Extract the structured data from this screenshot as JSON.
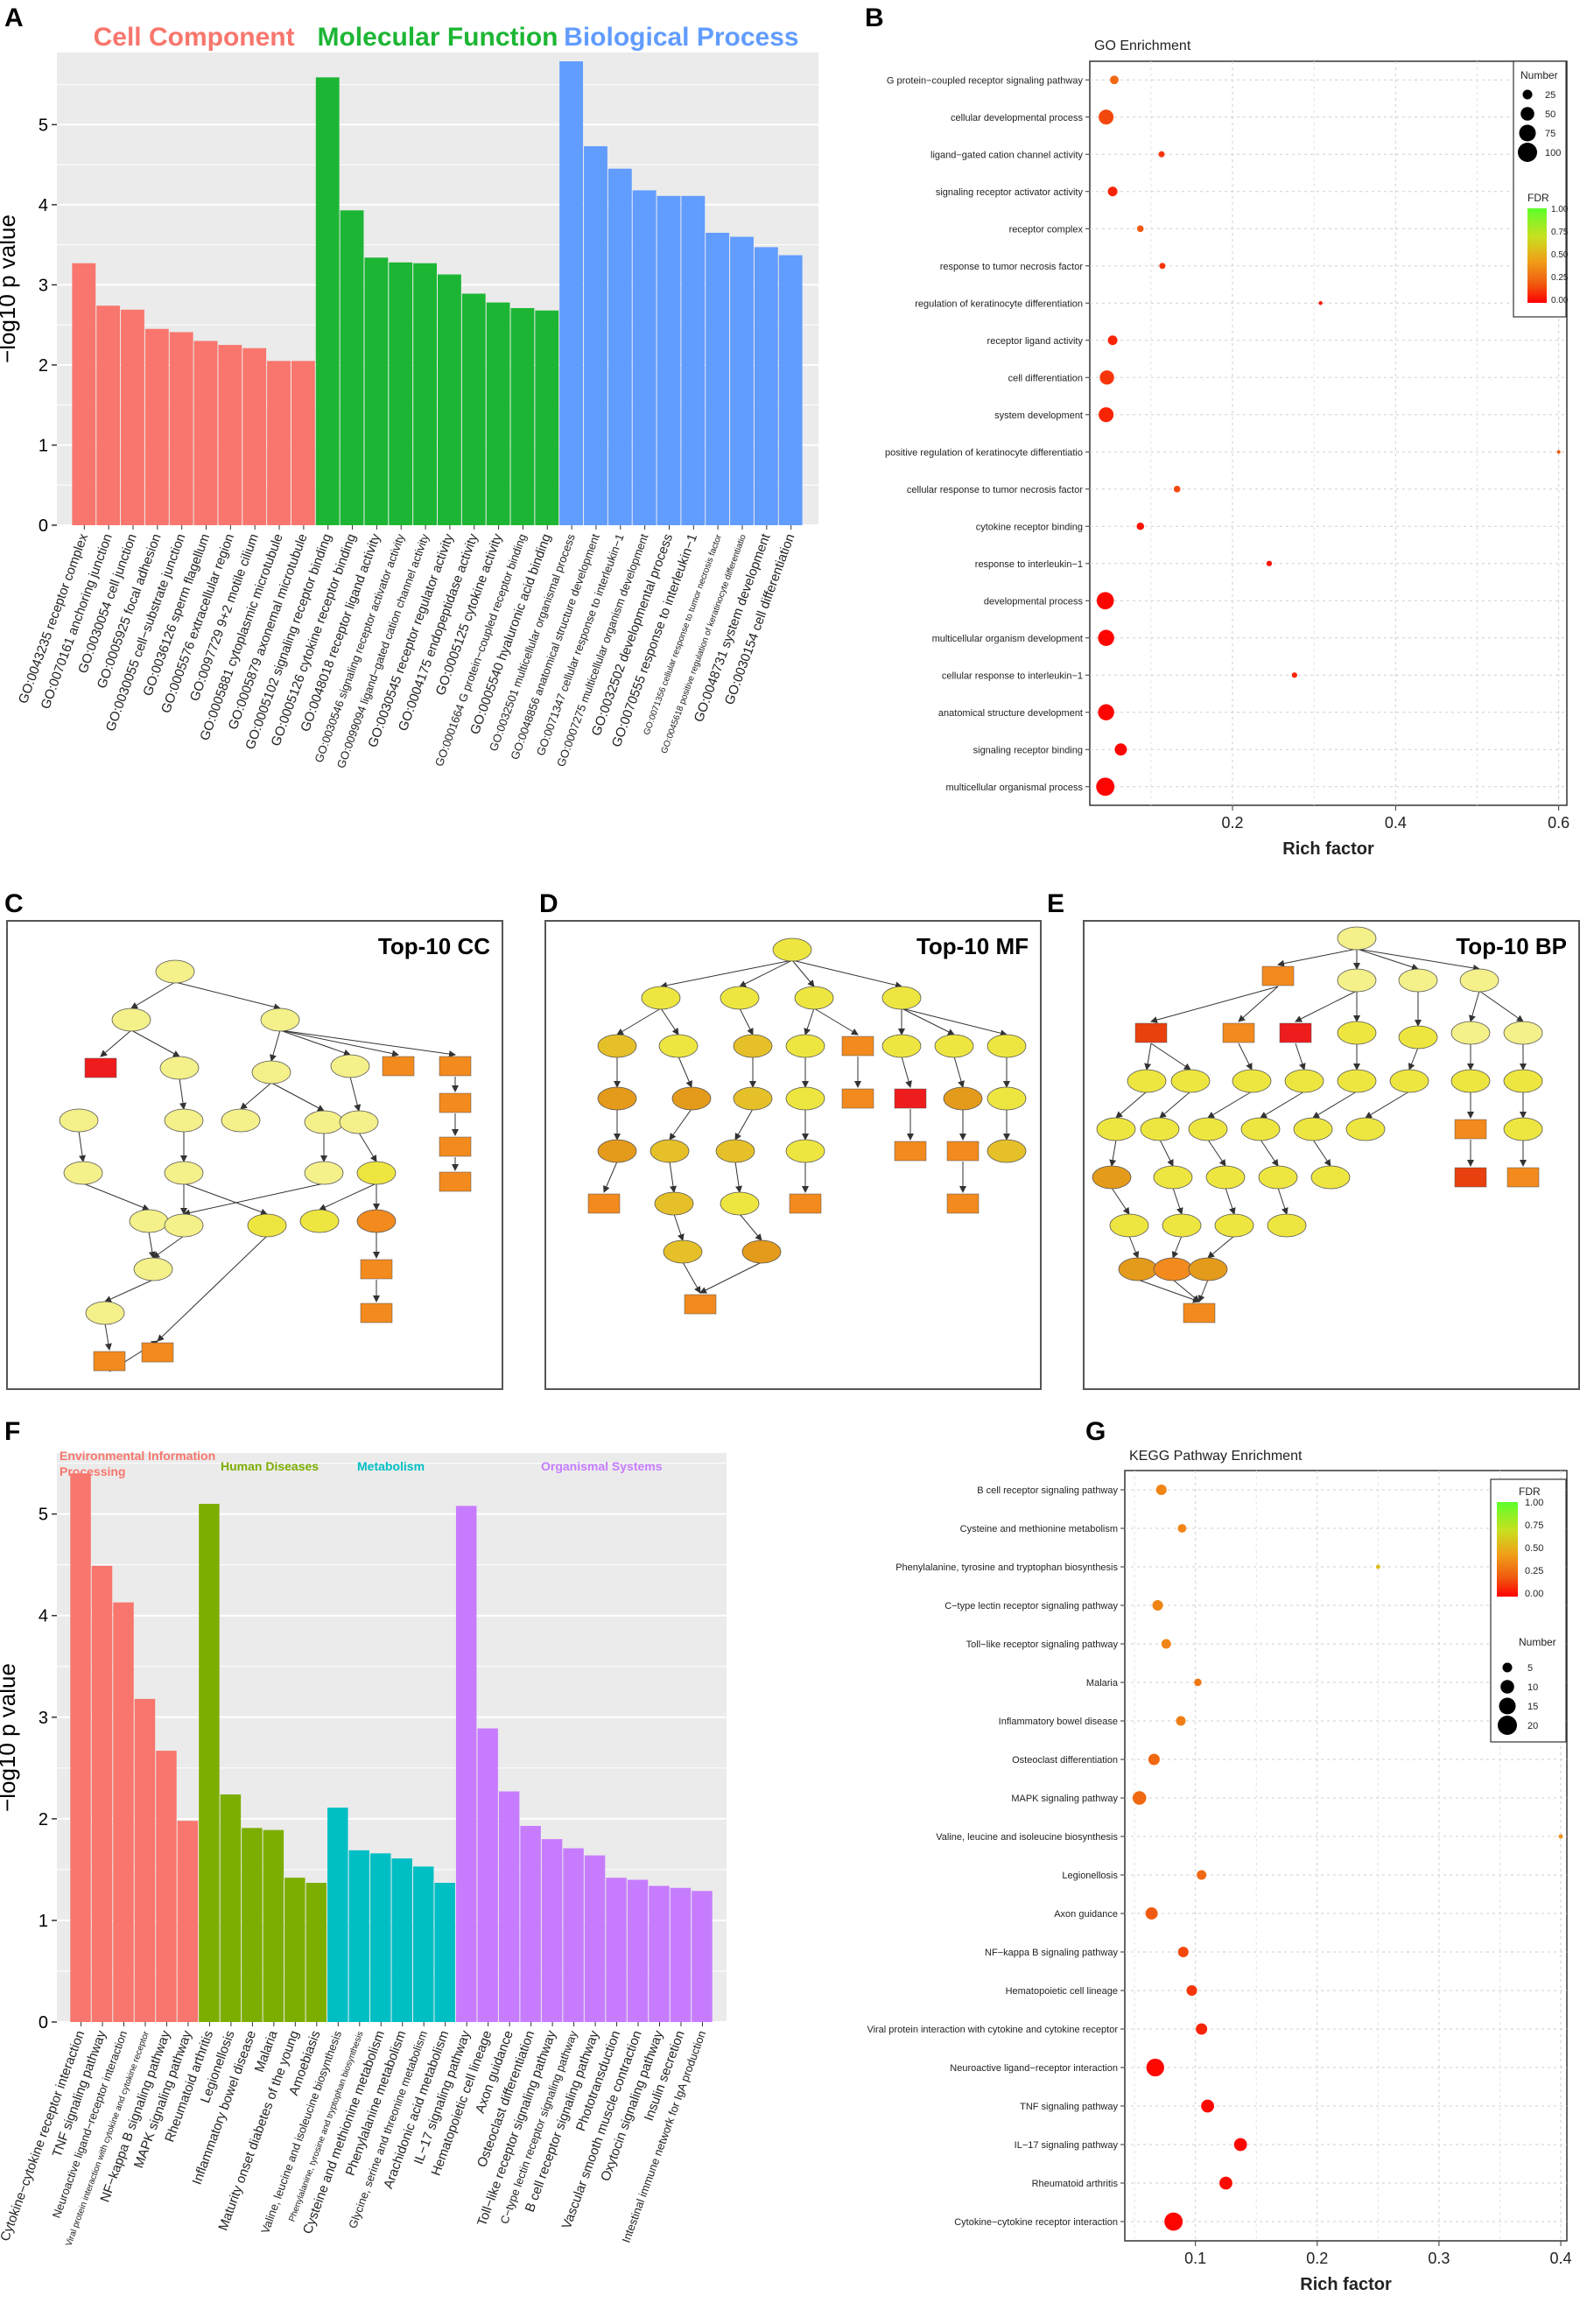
{
  "panel_labels": {
    "a": "A",
    "b": "B",
    "c": "C",
    "d": "D",
    "e": "E",
    "f": "F",
    "g": "G"
  },
  "colors": {
    "cc": "#F8766D",
    "mf": "#1DB634",
    "bp": "#619CFF",
    "env": "#F8766D",
    "hd": "#7CAE00",
    "met": "#00BFC4",
    "org": "#C77CFF",
    "grid": "#EBEBEB"
  },
  "networks": {
    "cc_title": "Top-10 CC",
    "mf_title": "Top-10 MF",
    "bp_title": "Top-10 BP"
  },
  "chart_data": [
    {
      "id": "A",
      "type": "bar",
      "ylabel": "−log10 p value",
      "ylim": [
        0,
        5.9
      ],
      "yticks": [
        0,
        1,
        2,
        3,
        4,
        5
      ],
      "groups": [
        {
          "name": "Cell Component",
          "color": "#F8766D"
        },
        {
          "name": "Molecular Function",
          "color": "#1DB634"
        },
        {
          "name": "Biological Process",
          "color": "#619CFF"
        }
      ],
      "categories": [
        "GO:0043235 receptor complex",
        "GO:0070161 anchoring junction",
        "GO:0030054 cell junction",
        "GO:0005925 focal adhesion",
        "GO:0030055 cell−substrate junction",
        "GO:0036126 sperm flagellum",
        "GO:0005576 extracellular region",
        "GO:0097729 9+2 motile cilium",
        "GO:0005881 cytoplasmic microtubule",
        "GO:0005879 axonemal microtubule",
        "GO:0005102 signaling receptor binding",
        "GO:0005126 cytokine receptor binding",
        "GO:0048018 receptor ligand activity",
        "GO:0030546 signaling receptor activator activity",
        "GO:0099094 ligand−gated cation channel activity",
        "GO:0030545 receptor regulator activity",
        "GO:0004175 endopeptidase activity",
        "GO:0005125 cytokine activity",
        "GO:0001664 G protein−coupled receptor binding",
        "GO:0005540 hyaluronic acid binding",
        "GO:0032501 multicellular organismal process",
        "GO:0048856 anatomical structure development",
        "GO:0071347 cellular response to interleukin−1",
        "GO:0007275 multicellular organism development",
        "GO:0032502 developmental process",
        "GO:0070555 response to interleukin−1",
        "GO:0071356 cellular response to tumor necrosis factor",
        "GO:0045618 positive regulation of keratinocyte differentiatio",
        "GO:0048731 system development",
        "GO:0030154 cell differentiation"
      ],
      "group_of": [
        0,
        0,
        0,
        0,
        0,
        0,
        0,
        0,
        0,
        0,
        1,
        1,
        1,
        1,
        1,
        1,
        1,
        1,
        1,
        1,
        2,
        2,
        2,
        2,
        2,
        2,
        2,
        2,
        2,
        2
      ],
      "values": [
        3.27,
        2.74,
        2.69,
        2.45,
        2.41,
        2.3,
        2.25,
        2.21,
        2.05,
        2.05,
        5.59,
        3.93,
        3.34,
        3.28,
        3.27,
        3.13,
        2.89,
        2.78,
        2.71,
        2.68,
        5.79,
        4.73,
        4.45,
        4.18,
        4.11,
        4.11,
        3.65,
        3.6,
        3.47,
        3.37
      ]
    },
    {
      "id": "B",
      "type": "scatter",
      "title": "GO Enrichment",
      "xlabel": "Rich factor",
      "xlim": [
        0.025,
        0.61
      ],
      "xticks": [
        0.2,
        0.4,
        0.6
      ],
      "categories": [
        "G protein−coupled receptor signaling pathway",
        "cellular developmental process",
        "ligand−gated cation channel activity",
        "signaling receptor activator activity",
        "receptor complex",
        "response to tumor necrosis factor",
        "regulation of keratinocyte differentiation",
        "receptor ligand activity",
        "cell differentiation",
        "system development",
        "positive regulation of keratinocyte differentiatio",
        "cellular response to tumor necrosis factor",
        "cytokine receptor binding",
        "response to interleukin−1",
        "developmental process",
        "multicellular organism development",
        "cellular response to interleukin−1",
        "anatomical structure development",
        "signaling receptor binding",
        "multicellular organismal process"
      ],
      "rich_factor": [
        0.055,
        0.045,
        0.113,
        0.053,
        0.087,
        0.114,
        0.308,
        0.053,
        0.046,
        0.045,
        0.6,
        0.132,
        0.087,
        0.245,
        0.044,
        0.045,
        0.276,
        0.045,
        0.063,
        0.044
      ],
      "number": [
        20,
        60,
        10,
        25,
        12,
        10,
        4,
        25,
        55,
        60,
        2,
        12,
        15,
        8,
        80,
        70,
        8,
        70,
        40,
        90
      ],
      "fdr": [
        0.3,
        0.2,
        0.15,
        0.1,
        0.25,
        0.15,
        0.05,
        0.1,
        0.15,
        0.1,
        0.25,
        0.2,
        0.05,
        0.05,
        0.01,
        0.01,
        0.1,
        0.01,
        0.01,
        0.01
      ],
      "legend_number_title": "Number",
      "legend_number_values": [
        25,
        50,
        75,
        100
      ],
      "legend_fdr_title": "FDR",
      "legend_fdr_ticks": [
        "1.00",
        "0.75",
        "0.50",
        "0.25",
        "0.00"
      ]
    },
    {
      "id": "F",
      "type": "bar",
      "ylabel": "−log10 p value",
      "ylim": [
        0,
        5.6
      ],
      "yticks": [
        0,
        1,
        2,
        3,
        4,
        5
      ],
      "groups": [
        {
          "name": "Environmental Information Processing",
          "line1": "Environmental Information",
          "line2": "Processing",
          "color": "#F8766D"
        },
        {
          "name": "Human Diseases",
          "color": "#7CAE00"
        },
        {
          "name": "Metabolism",
          "color": "#00BFC4"
        },
        {
          "name": "Organismal Systems",
          "color": "#C77CFF"
        }
      ],
      "categories": [
        "Cytokine−cytokine receptor interaction",
        "TNF signaling pathway",
        "Neuroactive ligand−receptor interaction",
        "Viral protein interaction with cytokine and cytokine receptor",
        "NF−kappa B signaling pathway",
        "MAPK signaling pathway",
        "Rheumatoid arthritis",
        "Legionellosis",
        "Inflammatory bowel disease",
        "Malaria",
        "Maturity onset diabetes of the young",
        "Amoebiasis",
        "Valine, leucine and isoleucine biosynthesis",
        "Phenylalanine, tyrosine and tryptophan biosynthesis",
        "Cysteine and methionine metabolism",
        "Phenylalanine metabolism",
        "Glycine, serine and threonine metabolism",
        "Arachidonic acid metabolism",
        "IL−17 signaling pathway",
        "Hematopoietic cell lineage",
        "Axon guidance",
        "Osteoclast differentiation",
        "Toll−like receptor signaling pathway",
        "C−type lectin receptor signaling pathway",
        "B cell receptor signaling pathway",
        "Phototransduction",
        "Vascular smooth muscle contraction",
        "Oxytocin signaling pathway",
        "Insulin secretion",
        "Intestinal immune network for IgA production"
      ],
      "group_of": [
        0,
        0,
        0,
        0,
        0,
        0,
        1,
        1,
        1,
        1,
        1,
        1,
        2,
        2,
        2,
        2,
        2,
        2,
        3,
        3,
        3,
        3,
        3,
        3,
        3,
        3,
        3,
        3,
        3,
        3
      ],
      "values": [
        5.4,
        4.49,
        4.13,
        3.18,
        2.67,
        1.98,
        5.1,
        2.24,
        1.91,
        1.89,
        1.42,
        1.37,
        2.11,
        1.69,
        1.66,
        1.61,
        1.53,
        1.37,
        5.08,
        2.89,
        2.27,
        1.93,
        1.8,
        1.71,
        1.64,
        1.42,
        1.4,
        1.34,
        1.32,
        1.29
      ]
    },
    {
      "id": "G",
      "type": "scatter",
      "title": "KEGG Pathway Enrichment",
      "xlabel": "Rich factor",
      "xlim": [
        0.042,
        0.405
      ],
      "xticks": [
        0.1,
        0.2,
        0.3,
        0.4
      ],
      "categories": [
        "B cell receptor signaling pathway",
        "Cysteine and methionine metabolism",
        "Phenylalanine, tyrosine and tryptophan biosynthesis",
        "C−type lectin receptor signaling pathway",
        "Toll−like receptor signaling pathway",
        "Malaria",
        "Inflammatory bowel disease",
        "Osteoclast differentiation",
        "MAPK signaling pathway",
        "Valine, leucine and isoleucine biosynthesis",
        "Legionellosis",
        "Axon guidance",
        "NF−kappa B signaling pathway",
        "Hematopoietic cell lineage",
        "Viral protein interaction with cytokine and cytokine receptor",
        "Neuroactive ligand−receptor interaction",
        "TNF signaling pathway",
        "IL−17 signaling pathway",
        "Rheumatoid arthritis",
        "Cytokine−cytokine receptor interaction"
      ],
      "rich_factor": [
        0.072,
        0.089,
        0.25,
        0.069,
        0.076,
        0.102,
        0.088,
        0.066,
        0.054,
        0.4,
        0.105,
        0.064,
        0.09,
        0.097,
        0.105,
        0.067,
        0.11,
        0.137,
        0.125,
        0.082
      ],
      "number": [
        6,
        4,
        1,
        6,
        5,
        3,
        5,
        7,
        10,
        1,
        5,
        8,
        6,
        6,
        7,
        17,
        9,
        9,
        9,
        18
      ],
      "fdr": [
        0.4,
        0.4,
        0.6,
        0.4,
        0.4,
        0.35,
        0.38,
        0.3,
        0.3,
        0.45,
        0.3,
        0.25,
        0.2,
        0.15,
        0.1,
        0.02,
        0.02,
        0.02,
        0.03,
        0.01
      ],
      "legend_number_title": "Number",
      "legend_number_values": [
        5,
        10,
        15,
        20
      ],
      "legend_fdr_title": "FDR",
      "legend_fdr_ticks": [
        "1.00",
        "0.75",
        "0.50",
        "0.25",
        "0.00"
      ]
    }
  ]
}
